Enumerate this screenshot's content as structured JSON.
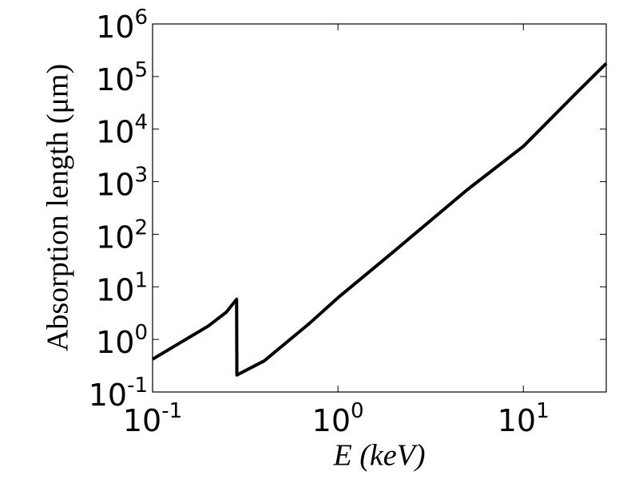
{
  "chart_data": {
    "type": "line",
    "xlabel": "E (keV)",
    "ylabel": "Absorption length (μm)",
    "x": [
      0.1,
      0.2,
      0.25,
      0.284,
      0.285,
      0.4,
      0.7,
      1,
      2,
      5,
      10,
      20,
      28
    ],
    "series": [
      {
        "color": "#000000",
        "values": [
          0.42,
          1.8,
          3.3,
          5.8,
          0.21,
          0.39,
          2.0,
          6.2,
          47,
          710,
          4700,
          55000,
          178000
        ]
      }
    ],
    "xscale": "log",
    "yscale": "log",
    "xlim": [
      0.1,
      28
    ],
    "ylim": [
      0.1,
      1000000
    ],
    "xticks": [
      {
        "value": 0.1,
        "label": "10",
        "exponent": "-1"
      },
      {
        "value": 1,
        "label": "10",
        "exponent": "0"
      },
      {
        "value": 10,
        "label": "10",
        "exponent": "1"
      }
    ],
    "yticks": [
      {
        "value": 0.1,
        "label": "10",
        "exponent": "-1"
      },
      {
        "value": 1,
        "label": "10",
        "exponent": "0"
      },
      {
        "value": 10,
        "label": "10",
        "exponent": "1"
      },
      {
        "value": 100,
        "label": "10",
        "exponent": "2"
      },
      {
        "value": 1000,
        "label": "10",
        "exponent": "3"
      },
      {
        "value": 10000,
        "label": "10",
        "exponent": "4"
      },
      {
        "value": 100000,
        "label": "10",
        "exponent": "5"
      },
      {
        "value": 1000000,
        "label": "10",
        "exponent": "6"
      }
    ],
    "grid": false
  }
}
